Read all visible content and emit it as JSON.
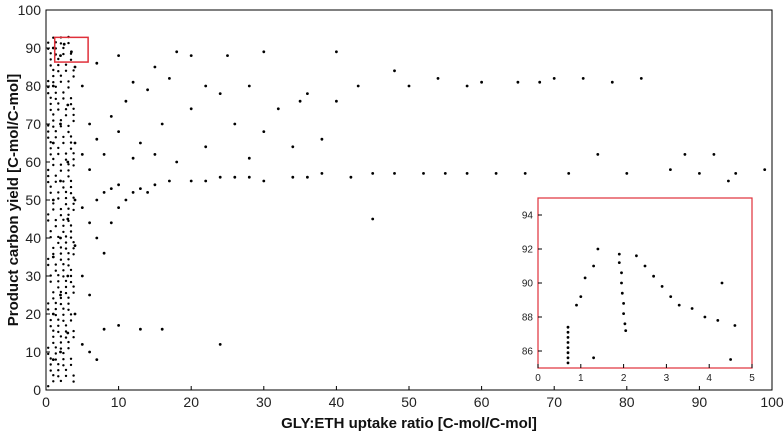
{
  "chart_data": [
    {
      "type": "scatter",
      "xlabel": "GLY:ETH uptake ratio [C-mol/C-mol]",
      "ylabel": "Product carbon yield [C-mol/C-mol]",
      "xlim": [
        0,
        100
      ],
      "ylim": [
        0,
        100
      ],
      "x_ticks": [
        "0",
        "10",
        "20",
        "30",
        "40",
        "50",
        "60",
        "70",
        "80",
        "90",
        "100"
      ],
      "y_ticks": [
        "0",
        "10",
        "20",
        "30",
        "40",
        "50",
        "60",
        "70",
        "80",
        "90",
        "100"
      ],
      "grid": false,
      "marker_color": "#000000",
      "highlight_box": {
        "x": [
          1.2,
          5.8
        ],
        "y": [
          86.3,
          92.8
        ],
        "color": "#e0303a"
      },
      "points": [
        [
          1,
          8
        ],
        [
          1,
          20
        ],
        [
          1,
          35
        ],
        [
          1,
          50
        ],
        [
          1,
          65
        ],
        [
          1,
          80
        ],
        [
          1,
          90
        ],
        [
          2,
          10
        ],
        [
          2,
          25
        ],
        [
          2,
          40
        ],
        [
          2,
          55
        ],
        [
          2,
          70
        ],
        [
          2,
          88
        ],
        [
          2.5,
          91
        ],
        [
          3,
          15
        ],
        [
          3,
          30
        ],
        [
          3,
          45
        ],
        [
          3,
          60
        ],
        [
          3,
          75
        ],
        [
          3.5,
          89
        ],
        [
          4,
          20
        ],
        [
          4,
          38
        ],
        [
          4,
          50
        ],
        [
          4,
          65
        ],
        [
          4,
          85
        ],
        [
          5,
          12
        ],
        [
          5,
          30
        ],
        [
          5,
          48
        ],
        [
          5,
          62
        ],
        [
          5,
          80
        ],
        [
          6,
          10
        ],
        [
          6,
          25
        ],
        [
          6,
          44
        ],
        [
          6,
          58
        ],
        [
          6,
          70
        ],
        [
          7,
          8
        ],
        [
          7,
          40
        ],
        [
          7,
          50
        ],
        [
          7,
          66
        ],
        [
          7,
          86
        ],
        [
          8,
          16
        ],
        [
          8,
          36
        ],
        [
          8,
          52
        ],
        [
          8,
          62
        ],
        [
          9,
          44
        ],
        [
          9,
          53
        ],
        [
          9,
          72
        ],
        [
          10,
          17
        ],
        [
          10,
          48
        ],
        [
          10,
          54
        ],
        [
          10,
          68
        ],
        [
          10,
          88
        ],
        [
          11,
          50
        ],
        [
          11,
          76
        ],
        [
          12,
          52
        ],
        [
          12,
          61
        ],
        [
          12,
          81
        ],
        [
          13,
          16
        ],
        [
          13,
          53
        ],
        [
          13,
          65
        ],
        [
          14,
          52
        ],
        [
          14,
          79
        ],
        [
          15,
          54
        ],
        [
          15,
          62
        ],
        [
          15,
          85
        ],
        [
          16,
          16
        ],
        [
          16,
          70
        ],
        [
          17,
          55
        ],
        [
          17,
          82
        ],
        [
          18,
          60
        ],
        [
          18,
          89
        ],
        [
          20,
          55
        ],
        [
          20,
          74
        ],
        [
          20,
          88
        ],
        [
          22,
          55
        ],
        [
          22,
          64
        ],
        [
          22,
          80
        ],
        [
          24,
          12
        ],
        [
          24,
          56
        ],
        [
          24,
          78
        ],
        [
          25,
          88
        ],
        [
          26,
          56
        ],
        [
          26,
          70
        ],
        [
          28,
          56
        ],
        [
          28,
          80
        ],
        [
          28,
          61
        ],
        [
          30,
          55
        ],
        [
          30,
          68
        ],
        [
          30,
          89
        ],
        [
          32,
          74
        ],
        [
          34,
          56
        ],
        [
          34,
          64
        ],
        [
          35,
          76
        ],
        [
          36,
          56
        ],
        [
          36,
          78
        ],
        [
          38,
          57
        ],
        [
          38,
          66
        ],
        [
          40,
          89
        ],
        [
          40,
          76
        ],
        [
          42,
          56
        ],
        [
          43,
          80
        ],
        [
          45,
          57
        ],
        [
          45,
          45
        ],
        [
          48,
          84
        ],
        [
          48,
          57
        ],
        [
          50,
          80
        ],
        [
          52,
          57
        ],
        [
          54,
          82
        ],
        [
          55,
          57
        ],
        [
          58,
          80
        ],
        [
          58,
          57
        ],
        [
          60,
          81
        ],
        [
          62,
          57
        ],
        [
          65,
          81
        ],
        [
          66,
          57
        ],
        [
          68,
          81
        ],
        [
          70,
          82
        ],
        [
          72,
          57
        ],
        [
          74,
          82
        ],
        [
          76,
          62
        ],
        [
          78,
          81
        ],
        [
          80,
          57
        ],
        [
          82,
          82
        ],
        [
          86,
          58
        ],
        [
          88,
          62
        ],
        [
          90,
          57
        ],
        [
          92,
          62
        ],
        [
          94,
          55
        ],
        [
          95,
          57
        ],
        [
          99,
          58
        ]
      ]
    },
    {
      "type": "scatter",
      "xlim": [
        0,
        5
      ],
      "ylim": [
        85,
        95
      ],
      "x_ticks": [
        "0",
        "1",
        "2",
        "3",
        "4",
        "5"
      ],
      "y_ticks": [
        "86",
        "88",
        "90",
        "92",
        "94"
      ],
      "grid": false,
      "frame_color": "#e0303a",
      "marker_color": "#000000",
      "points": [
        [
          0.7,
          85.3
        ],
        [
          0.7,
          85.6
        ],
        [
          0.7,
          85.9
        ],
        [
          0.7,
          86.2
        ],
        [
          0.7,
          86.5
        ],
        [
          0.7,
          86.8
        ],
        [
          0.7,
          87.1
        ],
        [
          0.7,
          87.4
        ],
        [
          0.9,
          88.7
        ],
        [
          1.0,
          89.2
        ],
        [
          1.1,
          90.3
        ],
        [
          1.3,
          91.0
        ],
        [
          1.4,
          92.0
        ],
        [
          1.3,
          85.6
        ],
        [
          1.9,
          91.7
        ],
        [
          1.9,
          91.2
        ],
        [
          1.95,
          90.6
        ],
        [
          1.95,
          90.0
        ],
        [
          1.97,
          89.4
        ],
        [
          2.0,
          88.8
        ],
        [
          2.0,
          88.2
        ],
        [
          2.03,
          87.6
        ],
        [
          2.05,
          87.2
        ],
        [
          2.3,
          91.6
        ],
        [
          2.5,
          91.0
        ],
        [
          2.7,
          90.4
        ],
        [
          2.9,
          89.8
        ],
        [
          3.1,
          89.2
        ],
        [
          3.3,
          88.7
        ],
        [
          3.6,
          88.5
        ],
        [
          3.9,
          88.0
        ],
        [
          4.2,
          87.8
        ],
        [
          4.3,
          90.0
        ],
        [
          4.5,
          85.5
        ],
        [
          4.6,
          87.5
        ]
      ]
    }
  ]
}
